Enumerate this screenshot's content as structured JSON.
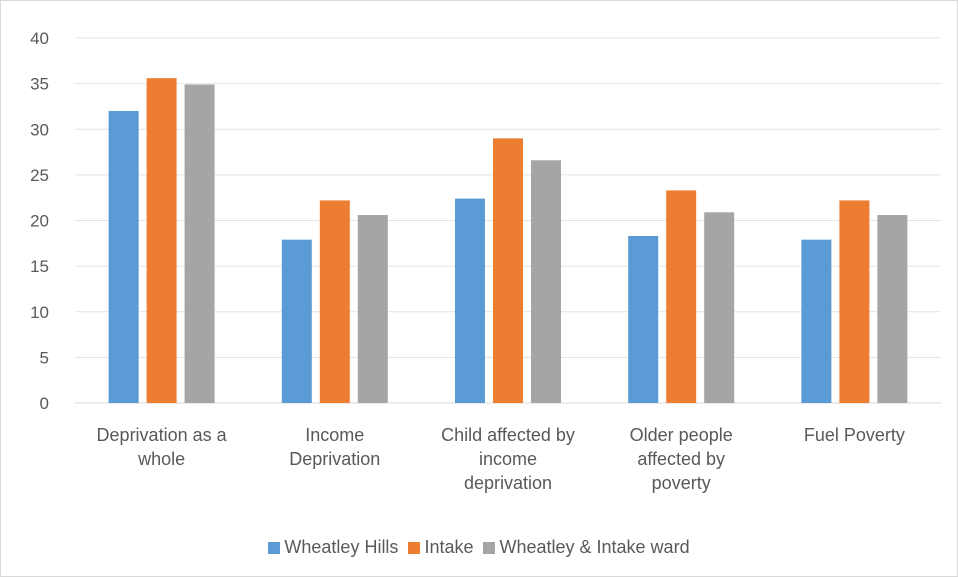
{
  "chart_data": {
    "type": "bar",
    "categories": [
      [
        "Deprivation as a",
        "whole"
      ],
      [
        "Income",
        "Deprivation"
      ],
      [
        "Child affected by",
        "income",
        "deprivation"
      ],
      [
        "Older people",
        "affected by",
        "poverty"
      ],
      [
        "Fuel Poverty"
      ]
    ],
    "series": [
      {
        "name": "Wheatley Hills",
        "color": "#5b9bd5",
        "values": [
          32,
          17.9,
          22.4,
          18.3,
          17.9
        ]
      },
      {
        "name": "Intake",
        "color": "#ed7d31",
        "values": [
          35.6,
          22.2,
          29,
          23.3,
          22.2
        ]
      },
      {
        "name": "Wheatley & Intake ward",
        "color": "#a5a5a5",
        "values": [
          34.9,
          20.6,
          26.6,
          20.9,
          20.6
        ]
      }
    ],
    "yticks": [
      0,
      5,
      10,
      15,
      20,
      25,
      30,
      35,
      40
    ],
    "ylim": [
      0,
      40
    ],
    "grid": true,
    "legend": "bottom"
  }
}
